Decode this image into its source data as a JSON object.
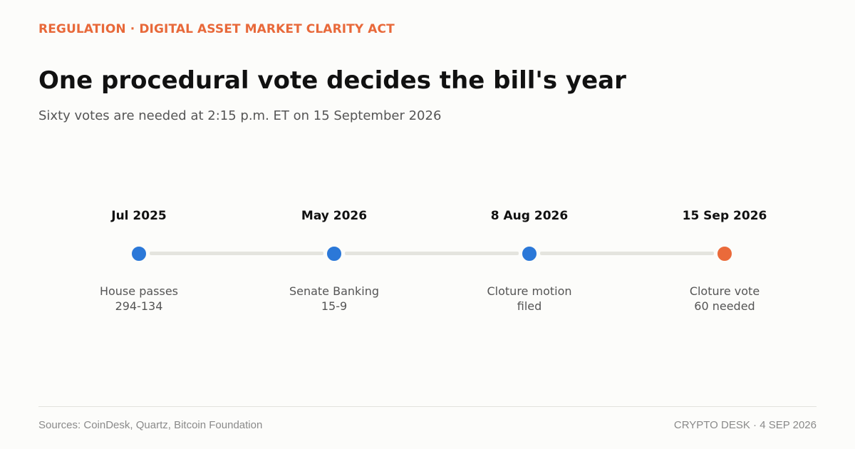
{
  "header": {
    "kicker": "REGULATION · DIGITAL ASSET MARKET CLARITY ACT",
    "title": "One procedural vote decides the bill's year",
    "subtitle": "Sixty votes are needed at 2:15 p.m. ET on 15 September 2026"
  },
  "timeline": {
    "milestones": [
      {
        "date": "Jul 2025",
        "line1": "House passes",
        "line2": "294-134",
        "color": "#2b78d8"
      },
      {
        "date": "May 2026",
        "line1": "Senate Banking",
        "line2": "15-9",
        "color": "#2b78d8"
      },
      {
        "date": "8 Aug 2026",
        "line1": "Cloture motion",
        "line2": "filed",
        "color": "#2b78d8"
      },
      {
        "date": "15 Sep 2026",
        "line1": "Cloture vote",
        "line2": "60 needed",
        "color": "#ea6a3a"
      }
    ],
    "connector_color": "#e4e4de"
  },
  "footer": {
    "source": "Sources: CoinDesk, Quartz, Bitcoin Foundation",
    "credit": "CRYPTO DESK  ·  4 SEP 2026"
  }
}
